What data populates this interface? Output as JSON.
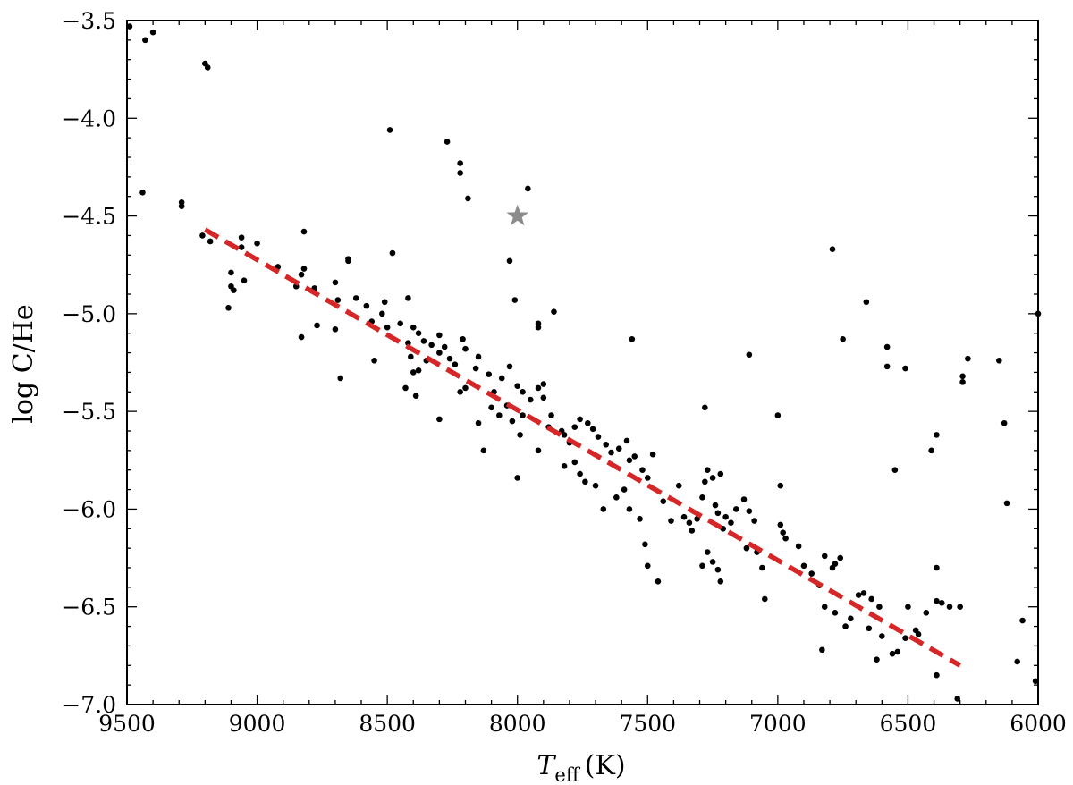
{
  "chart_data": {
    "type": "scatter",
    "title": "",
    "xlabel": {
      "main": "T",
      "sub": "eff",
      "unit": "(K)"
    },
    "ylabel": "log C/He",
    "xlim": [
      9500,
      6000
    ],
    "ylim": [
      -7.0,
      -3.5
    ],
    "x_reversed": true,
    "x_ticks": [
      "9500",
      "9000",
      "8500",
      "8000",
      "7500",
      "7000",
      "6500",
      "6000"
    ],
    "y_ticks": [
      "−3.5",
      "−4.0",
      "−4.5",
      "−5.0",
      "−5.5",
      "−6.0",
      "−6.5",
      "−7.0"
    ],
    "grid": false,
    "legend": "none",
    "colors": {
      "points": "#000000",
      "fit": "#d62728",
      "highlight": "#8c8c8c"
    },
    "fit_line": {
      "style": "dashed",
      "from": [
        9200,
        -4.57
      ],
      "to": [
        6300,
        -6.8
      ]
    },
    "highlight_point": {
      "marker": "star",
      "x": 8000,
      "y": -4.5
    },
    "series": [
      {
        "marker": "dot",
        "points": [
          [
            9490,
            -3.53
          ],
          [
            9430,
            -3.6
          ],
          [
            9400,
            -3.56
          ],
          [
            9200,
            -3.72
          ],
          [
            9190,
            -3.74
          ],
          [
            9440,
            -4.38
          ],
          [
            9290,
            -4.43
          ],
          [
            9290,
            -4.45
          ],
          [
            9210,
            -4.6
          ],
          [
            9180,
            -4.63
          ],
          [
            9060,
            -4.61
          ],
          [
            9060,
            -4.66
          ],
          [
            9000,
            -4.64
          ],
          [
            9100,
            -4.79
          ],
          [
            9050,
            -4.83
          ],
          [
            9100,
            -4.86
          ],
          [
            9090,
            -4.88
          ],
          [
            9110,
            -4.97
          ],
          [
            8920,
            -4.76
          ],
          [
            8820,
            -4.58
          ],
          [
            8820,
            -4.77
          ],
          [
            8830,
            -4.8
          ],
          [
            8780,
            -4.87
          ],
          [
            8700,
            -4.84
          ],
          [
            8690,
            -4.93
          ],
          [
            8650,
            -4.72
          ],
          [
            8650,
            -4.73
          ],
          [
            8620,
            -4.92
          ],
          [
            8480,
            -4.69
          ],
          [
            8420,
            -4.92
          ],
          [
            8490,
            -4.06
          ],
          [
            8270,
            -4.12
          ],
          [
            8220,
            -4.23
          ],
          [
            8220,
            -4.28
          ],
          [
            8190,
            -4.41
          ],
          [
            7960,
            -4.36
          ],
          [
            8030,
            -4.73
          ],
          [
            8010,
            -4.93
          ],
          [
            7860,
            -4.99
          ],
          [
            7920,
            -5.05
          ],
          [
            7920,
            -5.07
          ],
          [
            7560,
            -5.13
          ],
          [
            6790,
            -4.67
          ],
          [
            6660,
            -4.94
          ],
          [
            6750,
            -5.13
          ],
          [
            6580,
            -5.17
          ],
          [
            6580,
            -5.27
          ],
          [
            6510,
            -5.28
          ],
          [
            7110,
            -5.21
          ],
          [
            6000,
            -5.0
          ],
          [
            6270,
            -5.23
          ],
          [
            6150,
            -5.24
          ],
          [
            6290,
            -5.32
          ],
          [
            6290,
            -5.35
          ],
          [
            6130,
            -5.56
          ],
          [
            6120,
            -5.97
          ],
          [
            7000,
            -5.52
          ],
          [
            7280,
            -5.48
          ],
          [
            6550,
            -5.8
          ],
          [
            6390,
            -5.62
          ],
          [
            6410,
            -5.7
          ],
          [
            6990,
            -5.88
          ],
          [
            8850,
            -4.86
          ],
          [
            8770,
            -5.06
          ],
          [
            8830,
            -5.12
          ],
          [
            8700,
            -5.08
          ],
          [
            8680,
            -5.33
          ],
          [
            8580,
            -4.96
          ],
          [
            8560,
            -5.04
          ],
          [
            8550,
            -5.24
          ],
          [
            8510,
            -4.94
          ],
          [
            8520,
            -5.0
          ],
          [
            8500,
            -5.07
          ],
          [
            8450,
            -5.05
          ],
          [
            8400,
            -5.07
          ],
          [
            8380,
            -5.1
          ],
          [
            8360,
            -5.14
          ],
          [
            8330,
            -5.16
          ],
          [
            8300,
            -5.2
          ],
          [
            8420,
            -5.15
          ],
          [
            8410,
            -5.22
          ],
          [
            8380,
            -5.29
          ],
          [
            8350,
            -5.24
          ],
          [
            8400,
            -5.3
          ],
          [
            8300,
            -5.11
          ],
          [
            8280,
            -5.17
          ],
          [
            8260,
            -5.23
          ],
          [
            8240,
            -5.26
          ],
          [
            8200,
            -5.18
          ],
          [
            8210,
            -5.13
          ],
          [
            8160,
            -5.28
          ],
          [
            8150,
            -5.22
          ],
          [
            8110,
            -5.31
          ],
          [
            8090,
            -5.4
          ],
          [
            8060,
            -5.33
          ],
          [
            8030,
            -5.27
          ],
          [
            8000,
            -5.37
          ],
          [
            7980,
            -5.4
          ],
          [
            7950,
            -5.44
          ],
          [
            7920,
            -5.38
          ],
          [
            7900,
            -5.43
          ],
          [
            7900,
            -5.36
          ],
          [
            8040,
            -5.47
          ],
          [
            8020,
            -5.55
          ],
          [
            7980,
            -5.52
          ],
          [
            8430,
            -5.38
          ],
          [
            8390,
            -5.42
          ],
          [
            8300,
            -5.54
          ],
          [
            8220,
            -5.4
          ],
          [
            8200,
            -5.38
          ],
          [
            8150,
            -5.56
          ],
          [
            8130,
            -5.7
          ],
          [
            8100,
            -5.48
          ],
          [
            8070,
            -5.52
          ],
          [
            7990,
            -5.62
          ],
          [
            8000,
            -5.84
          ],
          [
            7920,
            -5.7
          ],
          [
            7880,
            -5.58
          ],
          [
            7870,
            -5.52
          ],
          [
            7830,
            -5.6
          ],
          [
            7820,
            -5.62
          ],
          [
            7800,
            -5.66
          ],
          [
            7780,
            -5.58
          ],
          [
            7760,
            -5.54
          ],
          [
            7730,
            -5.56
          ],
          [
            7710,
            -5.59
          ],
          [
            7690,
            -5.63
          ],
          [
            7660,
            -5.67
          ],
          [
            7640,
            -5.71
          ],
          [
            7610,
            -5.69
          ],
          [
            7580,
            -5.65
          ],
          [
            7570,
            -5.75
          ],
          [
            7550,
            -5.73
          ],
          [
            7520,
            -5.8
          ],
          [
            7500,
            -5.84
          ],
          [
            7480,
            -5.72
          ],
          [
            7820,
            -5.78
          ],
          [
            7780,
            -5.76
          ],
          [
            7760,
            -5.82
          ],
          [
            7740,
            -5.86
          ],
          [
            7700,
            -5.88
          ],
          [
            7670,
            -6.0
          ],
          [
            7620,
            -5.94
          ],
          [
            7590,
            -5.9
          ],
          [
            7570,
            -6.0
          ],
          [
            7530,
            -6.05
          ],
          [
            7510,
            -6.18
          ],
          [
            7500,
            -6.29
          ],
          [
            7460,
            -6.37
          ],
          [
            7440,
            -5.96
          ],
          [
            7410,
            -6.06
          ],
          [
            7380,
            -5.88
          ],
          [
            7360,
            -6.04
          ],
          [
            7340,
            -6.07
          ],
          [
            7330,
            -6.11
          ],
          [
            7310,
            -6.05
          ],
          [
            7290,
            -5.94
          ],
          [
            7280,
            -5.86
          ],
          [
            7270,
            -5.8
          ],
          [
            7250,
            -5.84
          ],
          [
            7240,
            -5.98
          ],
          [
            7230,
            -6.02
          ],
          [
            7220,
            -5.82
          ],
          [
            7210,
            -6.1
          ],
          [
            7200,
            -6.04
          ],
          [
            7180,
            -6.07
          ],
          [
            7160,
            -6.0
          ],
          [
            7130,
            -5.95
          ],
          [
            7110,
            -6.01
          ],
          [
            7090,
            -6.06
          ],
          [
            7290,
            -6.29
          ],
          [
            7270,
            -6.22
          ],
          [
            7250,
            -6.27
          ],
          [
            7230,
            -6.31
          ],
          [
            7220,
            -6.37
          ],
          [
            7120,
            -6.2
          ],
          [
            7080,
            -6.22
          ],
          [
            7060,
            -6.3
          ],
          [
            7050,
            -6.46
          ],
          [
            6990,
            -6.08
          ],
          [
            6980,
            -6.12
          ],
          [
            6970,
            -6.15
          ],
          [
            6920,
            -6.19
          ],
          [
            6900,
            -6.29
          ],
          [
            6870,
            -6.33
          ],
          [
            6840,
            -6.39
          ],
          [
            6820,
            -6.24
          ],
          [
            6790,
            -6.3
          ],
          [
            6780,
            -6.28
          ],
          [
            6760,
            -6.25
          ],
          [
            6820,
            -6.5
          ],
          [
            6780,
            -6.53
          ],
          [
            6720,
            -6.56
          ],
          [
            6690,
            -6.44
          ],
          [
            6670,
            -6.43
          ],
          [
            6640,
            -6.46
          ],
          [
            6610,
            -6.5
          ],
          [
            6600,
            -6.65
          ],
          [
            6560,
            -6.74
          ],
          [
            6540,
            -6.73
          ],
          [
            6510,
            -6.66
          ],
          [
            6500,
            -6.5
          ],
          [
            6470,
            -6.62
          ],
          [
            6460,
            -6.64
          ],
          [
            6430,
            -6.53
          ],
          [
            6390,
            -6.47
          ],
          [
            6390,
            -6.3
          ],
          [
            6370,
            -6.48
          ],
          [
            6340,
            -6.5
          ],
          [
            6300,
            -6.5
          ],
          [
            6310,
            -6.97
          ],
          [
            6390,
            -6.85
          ],
          [
            6650,
            -6.61
          ],
          [
            6740,
            -6.6
          ],
          [
            6830,
            -6.72
          ],
          [
            6620,
            -6.77
          ],
          [
            6080,
            -6.78
          ],
          [
            6060,
            -6.57
          ],
          [
            6010,
            -6.88
          ]
        ]
      }
    ]
  }
}
